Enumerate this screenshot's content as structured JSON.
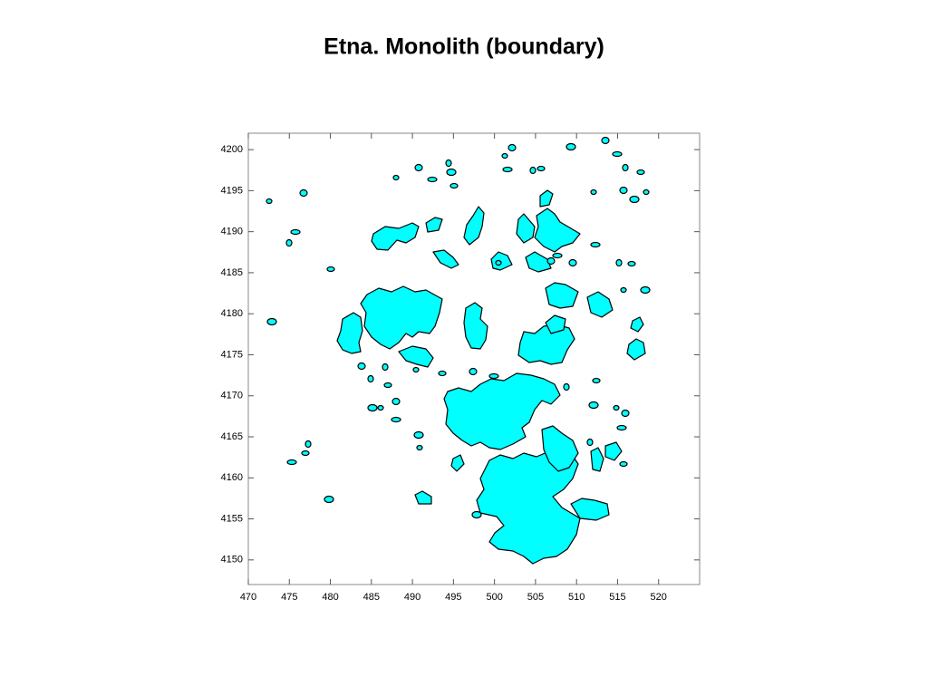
{
  "chart_data": {
    "type": "map",
    "title": "Etna. Monolith (boundary)",
    "xlim": [
      470,
      525
    ],
    "ylim": [
      4147,
      4202
    ],
    "xticks": [
      470,
      475,
      480,
      485,
      490,
      495,
      500,
      505,
      510,
      515,
      520
    ],
    "yticks": [
      4150,
      4155,
      4160,
      4165,
      4170,
      4175,
      4180,
      4185,
      4190,
      4195,
      4200
    ],
    "color": "#00ffff"
  }
}
